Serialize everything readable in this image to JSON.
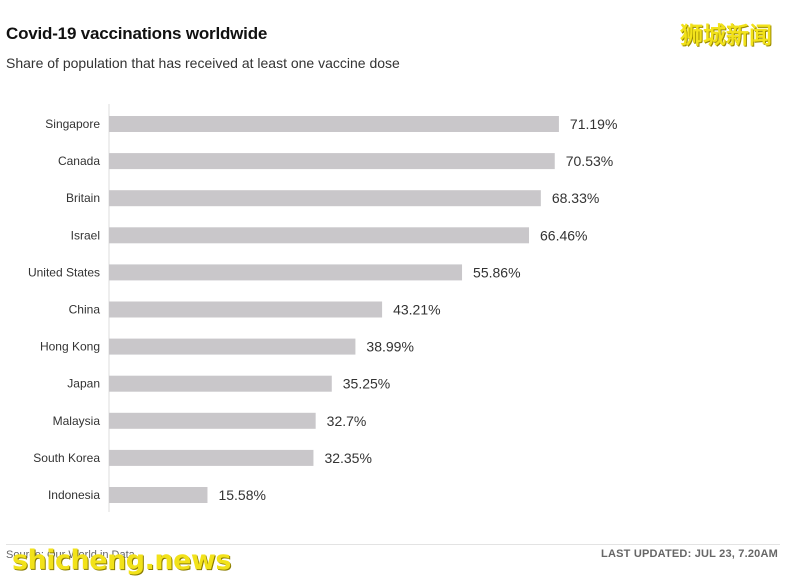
{
  "header": {
    "title": "Covid-19 vaccinations worldwide",
    "subtitle": "Share of population that has received at least one vaccine dose"
  },
  "watermarks": {
    "top": "狮城新闻",
    "bottom": "shicheng.news"
  },
  "footer": {
    "source": "Source: Our World in Data",
    "last_updated": "LAST UPDATED: JUL 23, 7.20AM"
  },
  "colors": {
    "bar": "#c9c7ca",
    "axis": "#dcdcdc",
    "watermark": "#f2e21a"
  },
  "chart_data": {
    "type": "bar",
    "orientation": "horizontal",
    "categories": [
      "Singapore",
      "Canada",
      "Britain",
      "Israel",
      "United States",
      "China",
      "Hong Kong",
      "Japan",
      "Malaysia",
      "South Korea",
      "Indonesia"
    ],
    "values": [
      71.19,
      70.53,
      68.33,
      66.46,
      55.86,
      43.21,
      38.99,
      35.25,
      32.7,
      32.35,
      15.58
    ],
    "value_labels": [
      "71.19%",
      "70.53%",
      "68.33%",
      "66.46%",
      "55.86%",
      "43.21%",
      "38.99%",
      "35.25%",
      "32.7%",
      "32.35%",
      "15.58%"
    ],
    "title": "Covid-19 vaccinations worldwide",
    "subtitle": "Share of population that has received at least one vaccine dose",
    "xlim": [
      0,
      100
    ],
    "grid": false,
    "legend": "none"
  }
}
